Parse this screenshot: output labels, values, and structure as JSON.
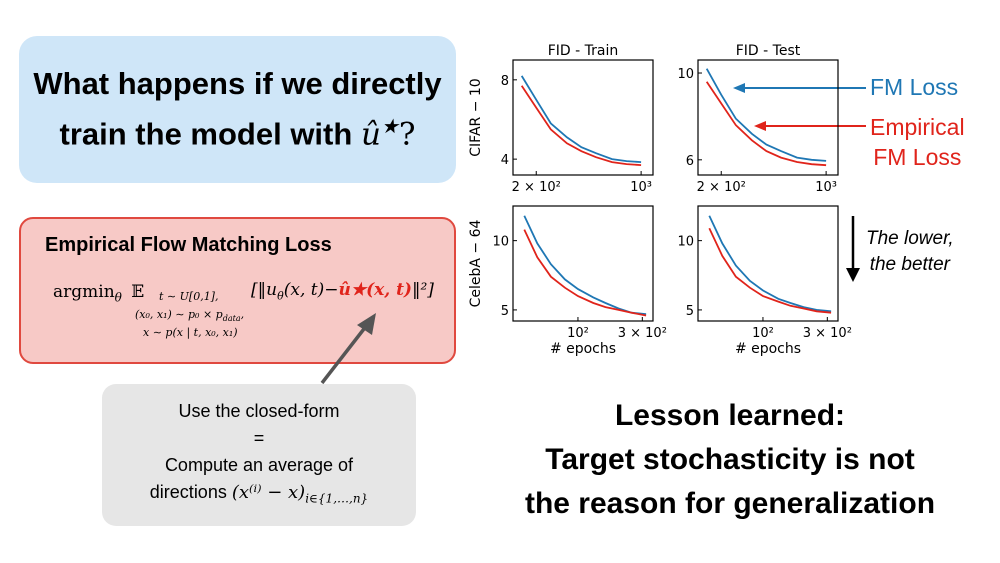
{
  "question": {
    "line1": "What happens if we directly",
    "line2": "train the model with",
    "symbol": "û",
    "star": "★",
    "qmark": "?"
  },
  "empirical": {
    "title": "Empirical Flow Matching Loss",
    "argmin": "argmin",
    "theta": "θ",
    "expect": "𝔼",
    "sub1": "t ∼ U[0,1],",
    "sub2": "(x₀, x₁) ∼ p₀ × p",
    "sub2b": "data",
    "sub2c": ",",
    "sub3": "x ∼ p(x | t, x₀, x₁)",
    "lhs": "[‖u",
    "lhs_theta": "θ",
    "lhs2": "(x, t)−",
    "target": "û★(x, t)",
    "rhs": "‖²]"
  },
  "note": {
    "line1": "Use the closed-form",
    "line2": "=",
    "line3": "Compute an average of",
    "line4_text": "directions",
    "line4_math": "(x⁽ⁱ⁾ − x)",
    "line4_sub": "i∈{1,…,n}"
  },
  "lesson": {
    "line1": "Lesson learned:",
    "line2": "Target stochasticity is not",
    "line3": "the reason for generalization"
  },
  "legend": {
    "fm": "FM Loss",
    "emp1": "Empirical",
    "emp2": "FM Loss"
  },
  "lower_note": {
    "line1": "The lower,",
    "line2": "the better"
  },
  "colors": {
    "fm": "#1f77b4",
    "empirical": "#e0241b"
  },
  "chart_data": [
    {
      "type": "line",
      "title": "FID - Train",
      "ylabel": "CIFAR − 10",
      "xlabel": "",
      "xscale": "log",
      "xlim": [
        140,
        1200
      ],
      "ylim": [
        3.2,
        9.0
      ],
      "xticks": [
        {
          "v": 200,
          "label": "2 × 10²"
        },
        {
          "v": 1000,
          "label": "10³"
        }
      ],
      "yticks": [
        {
          "v": 4,
          "label": "4"
        },
        {
          "v": 8,
          "label": "8"
        }
      ],
      "x": [
        160,
        200,
        250,
        320,
        400,
        500,
        640,
        800,
        1000
      ],
      "series": [
        {
          "name": "FM Loss",
          "values": [
            8.2,
            7.0,
            5.8,
            5.1,
            4.6,
            4.3,
            4.0,
            3.9,
            3.85
          ]
        },
        {
          "name": "Empirical FM Loss",
          "values": [
            7.7,
            6.6,
            5.5,
            4.8,
            4.4,
            4.1,
            3.85,
            3.75,
            3.7
          ]
        }
      ]
    },
    {
      "type": "line",
      "title": "FID - Test",
      "ylabel": "",
      "xlabel": "",
      "xscale": "log",
      "xlim": [
        140,
        1200
      ],
      "ylim": [
        5.3,
        10.6
      ],
      "xticks": [
        {
          "v": 200,
          "label": "2 × 10²"
        },
        {
          "v": 1000,
          "label": "10³"
        }
      ],
      "yticks": [
        {
          "v": 6,
          "label": "6"
        },
        {
          "v": 10,
          "label": "10"
        }
      ],
      "x": [
        160,
        200,
        250,
        320,
        400,
        500,
        640,
        800,
        1000
      ],
      "series": [
        {
          "name": "FM Loss",
          "values": [
            10.2,
            9.0,
            7.9,
            7.2,
            6.7,
            6.4,
            6.1,
            6.0,
            5.95
          ]
        },
        {
          "name": "Empirical FM Loss",
          "values": [
            9.6,
            8.6,
            7.6,
            6.9,
            6.4,
            6.1,
            5.9,
            5.8,
            5.75
          ]
        }
      ]
    },
    {
      "type": "line",
      "title": "",
      "ylabel": "CelebA − 64",
      "xlabel": "# epochs",
      "xscale": "log",
      "xlim": [
        33,
        360
      ],
      "ylim": [
        4.2,
        12.5
      ],
      "xticks": [
        {
          "v": 100,
          "label": "10²"
        },
        {
          "v": 300,
          "label": "3 × 10²"
        }
      ],
      "yticks": [
        {
          "v": 5,
          "label": "5"
        },
        {
          "v": 10,
          "label": "10"
        }
      ],
      "x": [
        40,
        50,
        63,
        80,
        100,
        130,
        160,
        200,
        250,
        320
      ],
      "series": [
        {
          "name": "FM Loss",
          "values": [
            11.8,
            9.8,
            8.3,
            7.2,
            6.5,
            5.9,
            5.5,
            5.1,
            4.8,
            4.7
          ]
        },
        {
          "name": "Empirical FM Loss",
          "values": [
            10.8,
            8.8,
            7.4,
            6.6,
            6.0,
            5.5,
            5.2,
            5.0,
            4.8,
            4.6
          ]
        }
      ]
    },
    {
      "type": "line",
      "title": "",
      "ylabel": "",
      "xlabel": "# epochs",
      "xscale": "log",
      "xlim": [
        33,
        360
      ],
      "ylim": [
        4.2,
        12.5
      ],
      "xticks": [
        {
          "v": 100,
          "label": "10²"
        },
        {
          "v": 300,
          "label": "3 × 10²"
        }
      ],
      "yticks": [
        {
          "v": 5,
          "label": "5"
        },
        {
          "v": 10,
          "label": "10"
        }
      ],
      "x": [
        40,
        50,
        63,
        80,
        100,
        130,
        160,
        200,
        250,
        320
      ],
      "series": [
        {
          "name": "FM Loss",
          "values": [
            11.8,
            9.8,
            8.2,
            7.1,
            6.4,
            5.8,
            5.5,
            5.2,
            5.0,
            4.9
          ]
        },
        {
          "name": "Empirical FM Loss",
          "values": [
            10.9,
            8.9,
            7.4,
            6.6,
            6.0,
            5.6,
            5.3,
            5.1,
            4.9,
            4.8
          ]
        }
      ]
    }
  ]
}
